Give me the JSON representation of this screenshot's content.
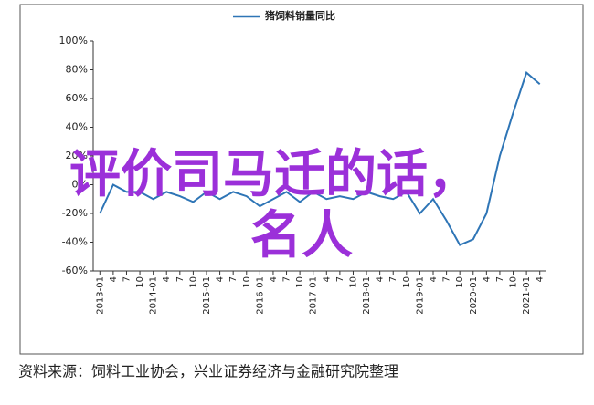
{
  "chart_data": {
    "type": "line",
    "series": [
      {
        "name": "猪饲料销量同比",
        "color": "#2e75b6",
        "values": [
          -20,
          0,
          -5,
          -5,
          -10,
          -5,
          -8,
          -12,
          -5,
          -10,
          -5,
          -8,
          -15,
          -10,
          -5,
          -12,
          -5,
          -10,
          -8,
          -10,
          -5,
          -8,
          -10,
          -5,
          -20,
          -10,
          -25,
          -42,
          -38,
          -20,
          20,
          50,
          78,
          70
        ]
      }
    ],
    "categories": [
      "2013-01",
      "4",
      "7",
      "10",
      "2014-01",
      "4",
      "7",
      "10",
      "2015-01",
      "4",
      "7",
      "10",
      "2016-01",
      "4",
      "7",
      "10",
      "2017-01",
      "4",
      "7",
      "10",
      "2018-01",
      "4",
      "7",
      "10",
      "2019-01",
      "4",
      "7",
      "10",
      "2020-01",
      "4",
      "7",
      "10",
      "2021-01",
      "4"
    ],
    "ylim": [
      -60,
      100
    ],
    "yticks": [
      {
        "value": -60,
        "label": "-60%"
      },
      {
        "value": -40,
        "label": "-40%"
      },
      {
        "value": -20,
        "label": "-20%"
      },
      {
        "value": 0,
        "label": "0%"
      },
      {
        "value": 20,
        "label": "20%"
      },
      {
        "value": 40,
        "label": "40%"
      },
      {
        "value": 60,
        "label": "60%"
      },
      {
        "value": 80,
        "label": "80%"
      },
      {
        "value": 100,
        "label": "100%"
      }
    ],
    "overlay": [
      "评价司马迁的话，",
      "名人"
    ],
    "source": "资料来源：饲料工业协会，兴业证券经济与金融研究院整理"
  }
}
